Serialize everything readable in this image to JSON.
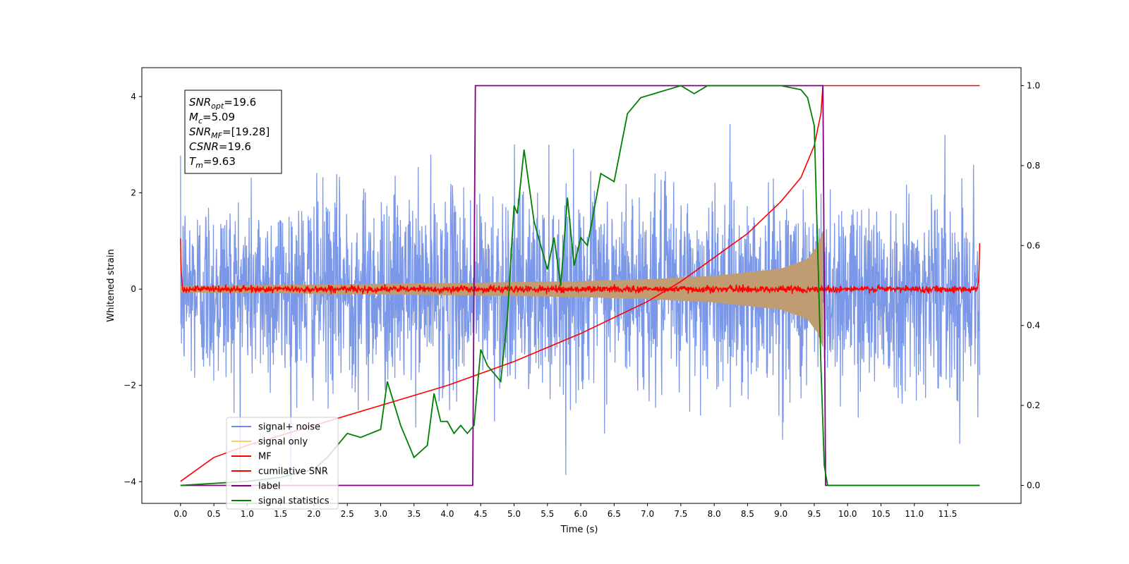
{
  "chart_data": {
    "type": "line",
    "xlabel": "Time (s)",
    "ylabel": "Whitened strain",
    "xlim": [
      -0.58,
      12.6
    ],
    "ylim_left": [
      -4.45,
      4.6
    ],
    "ylim_right": [
      -0.045,
      1.045
    ],
    "x_ticks": [
      0.0,
      0.5,
      1.0,
      1.5,
      2.0,
      2.5,
      3.0,
      3.5,
      4.0,
      4.5,
      5.0,
      5.5,
      6.0,
      6.5,
      7.0,
      7.5,
      8.0,
      8.5,
      9.0,
      9.5,
      10.0,
      10.5,
      11.0,
      11.5
    ],
    "x_tick_labels": [
      "0.0",
      "0.5",
      "1.0",
      "1.5",
      "2.0",
      "2.5",
      "3.0",
      "3.5",
      "4.0",
      "4.5",
      "5.0",
      "5.5",
      "6.0",
      "6.5",
      "7.0",
      "7.5",
      "8.0",
      "8.5",
      "9.0",
      "9.5",
      "10.0",
      "10.5",
      "11.0",
      "11.5"
    ],
    "y_left_ticks": [
      -4,
      -2,
      0,
      2,
      4
    ],
    "y_left_tick_labels": [
      "−4",
      "−2",
      "0",
      "2",
      "4"
    ],
    "y_right_ticks": [
      0.0,
      0.2,
      0.4,
      0.6,
      0.8,
      1.0
    ],
    "y_right_tick_labels": [
      "0.0",
      "0.2",
      "0.4",
      "0.6",
      "0.8",
      "1.0"
    ],
    "legend_position": "lower-left",
    "annotation": {
      "lines": [
        {
          "sym": "SNR",
          "sub": "opt",
          "val": "=19.6"
        },
        {
          "sym": "M",
          "sub": "c",
          "val": "=5.09"
        },
        {
          "sym": "SNR",
          "sub": "MF",
          "val": "=[19.28]"
        },
        {
          "sym": "CSNR",
          "sub": "",
          "val": "=19.6"
        },
        {
          "sym": "T",
          "sub": "m",
          "val": "=9.63"
        }
      ]
    },
    "series": [
      {
        "name": "signal+ noise",
        "color": "#6d8ce6",
        "axis": "left",
        "kind": "noise",
        "sigma": 1.0,
        "x_range": [
          0.0,
          11.98
        ]
      },
      {
        "name": "signal only",
        "color": "#ffcc66",
        "axis": "left",
        "kind": "chirp",
        "envelope": {
          "x": [
            0.0,
            2.0,
            4.0,
            6.0,
            7.0,
            8.0,
            9.0,
            9.4,
            9.55,
            9.63
          ],
          "amp": [
            0.06,
            0.09,
            0.12,
            0.16,
            0.2,
            0.27,
            0.42,
            0.62,
            0.9,
            1.2
          ]
        }
      },
      {
        "name": "MF",
        "color": "#ff0000",
        "axis": "left",
        "kind": "mf",
        "x_range": [
          0.0,
          11.98
        ]
      },
      {
        "name": "cumilative SNR",
        "color": "#ff0000",
        "axis": "right",
        "x": [
          0.0,
          0.5,
          1.0,
          2.0,
          3.0,
          4.0,
          5.0,
          6.0,
          7.0,
          7.5,
          8.0,
          8.5,
          9.0,
          9.3,
          9.5,
          9.6,
          9.63,
          11.98
        ],
        "y": [
          0.01,
          0.07,
          0.1,
          0.15,
          0.2,
          0.25,
          0.31,
          0.38,
          0.46,
          0.51,
          0.57,
          0.63,
          0.71,
          0.77,
          0.85,
          0.93,
          1.0,
          1.0
        ]
      },
      {
        "name": "label",
        "color": "#800080",
        "axis": "right",
        "x": [
          0.0,
          4.38,
          4.42,
          9.63,
          9.67,
          11.98
        ],
        "y": [
          0.0,
          0.0,
          1.0,
          1.0,
          0.0,
          0.0
        ]
      },
      {
        "name": "signal statistics",
        "color": "#008000",
        "axis": "right",
        "x": [
          0.0,
          0.5,
          1.0,
          1.5,
          2.0,
          2.2,
          2.5,
          2.7,
          3.0,
          3.1,
          3.3,
          3.5,
          3.7,
          3.8,
          3.9,
          4.0,
          4.1,
          4.2,
          4.3,
          4.4,
          4.5,
          4.6,
          4.7,
          4.8,
          4.9,
          5.0,
          5.05,
          5.15,
          5.3,
          5.4,
          5.5,
          5.6,
          5.7,
          5.8,
          5.9,
          6.0,
          6.1,
          6.3,
          6.5,
          6.7,
          6.9,
          7.1,
          7.3,
          7.5,
          7.7,
          7.9,
          8.1,
          8.5,
          9.0,
          9.3,
          9.4,
          9.5,
          9.55,
          9.6,
          9.65,
          9.7,
          9.8,
          11.98
        ],
        "y": [
          0.0,
          0.005,
          0.01,
          0.02,
          0.04,
          0.07,
          0.13,
          0.12,
          0.14,
          0.26,
          0.15,
          0.07,
          0.1,
          0.23,
          0.16,
          0.16,
          0.13,
          0.15,
          0.13,
          0.15,
          0.34,
          0.3,
          0.28,
          0.26,
          0.42,
          0.7,
          0.68,
          0.84,
          0.66,
          0.6,
          0.54,
          0.62,
          0.5,
          0.72,
          0.55,
          0.62,
          0.6,
          0.78,
          0.76,
          0.93,
          0.97,
          0.98,
          0.99,
          1.0,
          0.98,
          1.0,
          1.0,
          1.0,
          1.0,
          0.99,
          0.97,
          0.9,
          0.6,
          0.3,
          0.05,
          0.0,
          0.0,
          0.0
        ]
      }
    ]
  }
}
